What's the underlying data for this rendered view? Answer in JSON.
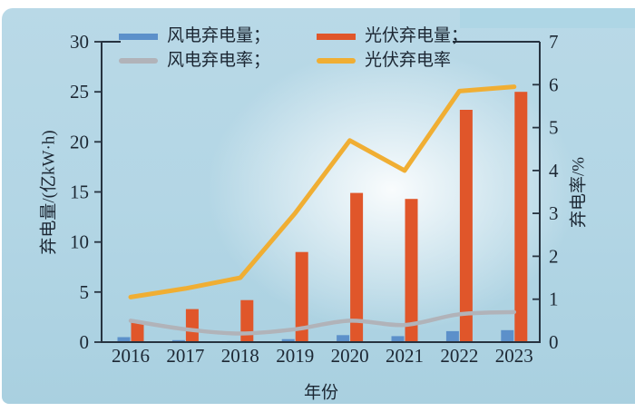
{
  "palette": {
    "card_background_top": "#b9d9e7",
    "card_background_bottom": "#a9d0e0",
    "center_glow": "#ffffff",
    "axis_line": "#273340",
    "text": "#1c2733"
  },
  "chart_data": {
    "type": "combo",
    "categories": [
      "2016",
      "2017",
      "2018",
      "2019",
      "2020",
      "2021",
      "2022",
      "2023"
    ],
    "series": [
      {
        "label": "风电弃电量；",
        "type": "bar",
        "axis": "left",
        "color": "#5c90ca",
        "values": [
          0.5,
          0.2,
          0.1,
          0.3,
          0.7,
          0.6,
          1.1,
          1.2
        ]
      },
      {
        "label": "光伏弃电量；",
        "type": "bar",
        "axis": "left",
        "color": "#e0562a",
        "values": [
          2.1,
          3.3,
          4.2,
          9.0,
          14.9,
          14.3,
          23.2,
          25.0
        ]
      },
      {
        "label": "风电弃电率；",
        "type": "line",
        "axis": "right",
        "color": "#b1b3b9",
        "values": [
          0.5,
          0.3,
          0.2,
          0.3,
          0.5,
          0.4,
          0.65,
          0.7
        ]
      },
      {
        "label": "光伏弃电率",
        "type": "line",
        "axis": "right",
        "color": "#f0ae33",
        "values": [
          1.05,
          1.25,
          1.5,
          3.0,
          4.7,
          4.0,
          5.85,
          5.95
        ]
      }
    ],
    "left_axis": {
      "label": "弃电量/(亿kW·h)",
      "min": 0,
      "max": 30,
      "ticks": [
        "0",
        "5",
        "10",
        "15",
        "20",
        "25",
        "30"
      ]
    },
    "right_axis": {
      "label": "弃电率/%",
      "min": 0,
      "max": 7,
      "ticks": [
        "0",
        "1",
        "2",
        "3",
        "4",
        "5",
        "6",
        "7"
      ]
    },
    "x_axis": {
      "label": "年份"
    },
    "legend_position": "top-left-two-rows",
    "grid": false
  }
}
